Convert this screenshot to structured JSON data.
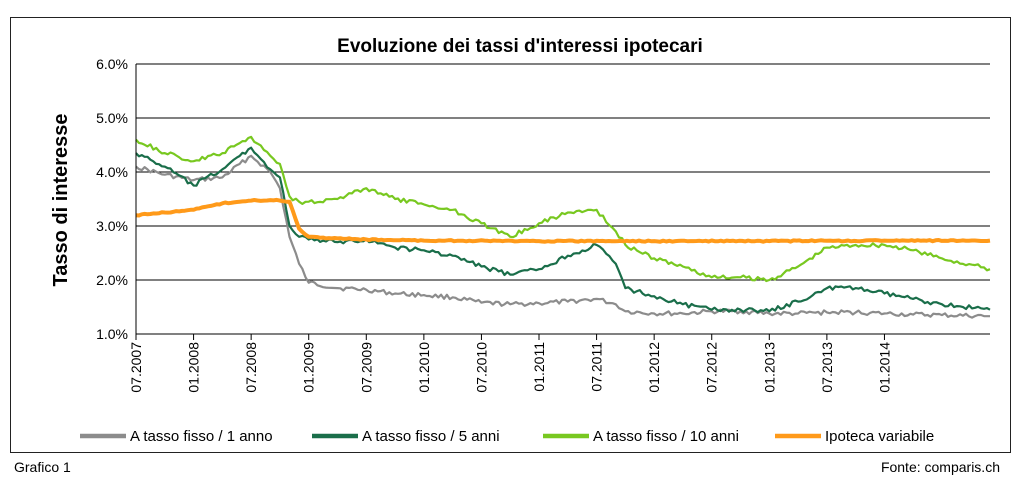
{
  "footer": {
    "left": "Grafico 1",
    "right": "Fonte: comparis.ch"
  },
  "chart_data": {
    "type": "line",
    "title": "Evoluzione dei tassi d'interessi ipotecari",
    "ylabel": "Tasso di interesse",
    "xlabel": "",
    "ylim": [
      1.0,
      6.0
    ],
    "xlim": [
      "2007-07",
      "2014-12"
    ],
    "grid": true,
    "legend_position": "bottom",
    "y_ticks": [
      "1.0%",
      "2.0%",
      "3.0%",
      "4.0%",
      "5.0%",
      "6.0%"
    ],
    "y_tick_values": [
      1.0,
      2.0,
      3.0,
      4.0,
      5.0,
      6.0
    ],
    "x_ticks": [
      "07.2007",
      "01.2008",
      "07.2008",
      "01.2009",
      "07.2009",
      "01.2010",
      "07.2010",
      "01.2011",
      "07.2011",
      "01.2012",
      "07.2012",
      "01.2013",
      "07.2013",
      "01.2014"
    ],
    "x_tick_values": [
      "2007-07",
      "2008-01",
      "2008-07",
      "2009-01",
      "2009-07",
      "2010-01",
      "2010-07",
      "2011-01",
      "2011-07",
      "2012-01",
      "2012-07",
      "2013-01",
      "2013-07",
      "2014-01"
    ],
    "series": [
      {
        "name": "A tasso fisso / 1 anno",
        "color": "#8c8c8c",
        "x": [
          "2007-07",
          "2007-10",
          "2008-01",
          "2008-04",
          "2008-07",
          "2008-09",
          "2008-10",
          "2008-11",
          "2008-12",
          "2009-01",
          "2009-04",
          "2009-07",
          "2009-10",
          "2010-01",
          "2010-04",
          "2010-07",
          "2010-10",
          "2011-01",
          "2011-04",
          "2011-07",
          "2011-09",
          "2011-10",
          "2012-01",
          "2012-04",
          "2012-07",
          "2012-10",
          "2013-01",
          "2013-04",
          "2013-07",
          "2013-10",
          "2014-01",
          "2014-04",
          "2014-07",
          "2014-12"
        ],
        "values": [
          4.1,
          3.95,
          3.85,
          3.9,
          4.3,
          4.0,
          3.7,
          2.8,
          2.3,
          1.95,
          1.85,
          1.82,
          1.75,
          1.72,
          1.68,
          1.58,
          1.55,
          1.57,
          1.6,
          1.65,
          1.55,
          1.42,
          1.38,
          1.38,
          1.42,
          1.42,
          1.38,
          1.38,
          1.4,
          1.4,
          1.38,
          1.36,
          1.35,
          1.33
        ]
      },
      {
        "name": "A tasso fisso / 5 anni",
        "color": "#1a6e4a",
        "x": [
          "2007-07",
          "2007-10",
          "2008-01",
          "2008-04",
          "2008-07",
          "2008-09",
          "2008-10",
          "2008-11",
          "2008-12",
          "2009-01",
          "2009-04",
          "2009-07",
          "2009-10",
          "2010-01",
          "2010-04",
          "2010-07",
          "2010-10",
          "2011-01",
          "2011-04",
          "2011-07",
          "2011-09",
          "2011-10",
          "2012-01",
          "2012-04",
          "2012-07",
          "2012-10",
          "2013-01",
          "2013-04",
          "2013-07",
          "2013-10",
          "2014-01",
          "2014-04",
          "2014-07",
          "2014-12"
        ],
        "values": [
          4.35,
          4.1,
          3.75,
          4.05,
          4.45,
          4.05,
          3.9,
          3.0,
          2.8,
          2.75,
          2.7,
          2.75,
          2.6,
          2.55,
          2.45,
          2.25,
          2.1,
          2.2,
          2.45,
          2.65,
          2.3,
          1.85,
          1.7,
          1.55,
          1.45,
          1.45,
          1.42,
          1.6,
          1.85,
          1.85,
          1.75,
          1.65,
          1.55,
          1.45
        ]
      },
      {
        "name": "A tasso fisso / 10 anni",
        "color": "#78c820",
        "x": [
          "2007-07",
          "2007-10",
          "2008-01",
          "2008-04",
          "2008-07",
          "2008-09",
          "2008-10",
          "2008-11",
          "2008-12",
          "2009-01",
          "2009-04",
          "2009-07",
          "2009-10",
          "2010-01",
          "2010-04",
          "2010-07",
          "2010-10",
          "2011-01",
          "2011-04",
          "2011-07",
          "2011-09",
          "2011-10",
          "2012-01",
          "2012-04",
          "2012-07",
          "2012-10",
          "2013-01",
          "2013-04",
          "2013-07",
          "2013-10",
          "2014-01",
          "2014-04",
          "2014-07",
          "2014-12"
        ],
        "values": [
          4.6,
          4.35,
          4.2,
          4.35,
          4.65,
          4.3,
          4.15,
          3.55,
          3.45,
          3.45,
          3.5,
          3.7,
          3.5,
          3.4,
          3.3,
          3.05,
          2.8,
          3.05,
          3.25,
          3.3,
          2.9,
          2.65,
          2.4,
          2.25,
          2.05,
          2.05,
          2.0,
          2.25,
          2.6,
          2.65,
          2.65,
          2.55,
          2.4,
          2.2
        ]
      },
      {
        "name": "Ipoteca variabile",
        "color": "#ff9a1a",
        "x": [
          "2007-07",
          "2007-10",
          "2008-01",
          "2008-04",
          "2008-07",
          "2008-09",
          "2008-10",
          "2008-11",
          "2008-12",
          "2009-01",
          "2009-04",
          "2009-07",
          "2010-01",
          "2011-01",
          "2012-01",
          "2013-01",
          "2014-01",
          "2014-12"
        ],
        "values": [
          3.2,
          3.25,
          3.3,
          3.42,
          3.47,
          3.48,
          3.47,
          3.45,
          2.95,
          2.8,
          2.77,
          2.75,
          2.73,
          2.72,
          2.72,
          2.72,
          2.73,
          2.73
        ]
      }
    ]
  }
}
